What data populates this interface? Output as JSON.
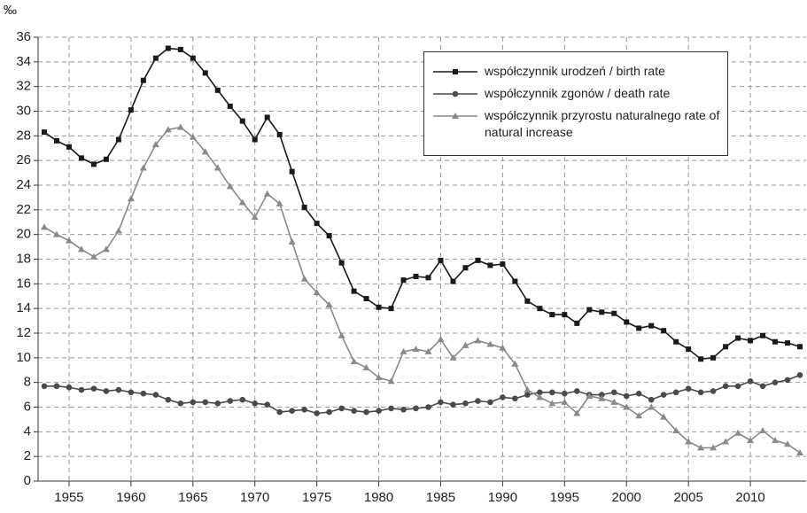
{
  "chart_data": {
    "type": "line",
    "y_label": "‰",
    "x": [
      1953,
      1954,
      1955,
      1956,
      1957,
      1958,
      1959,
      1960,
      1961,
      1962,
      1963,
      1964,
      1965,
      1966,
      1967,
      1968,
      1969,
      1970,
      1971,
      1972,
      1973,
      1974,
      1975,
      1976,
      1977,
      1978,
      1979,
      1980,
      1981,
      1982,
      1983,
      1984,
      1985,
      1986,
      1987,
      1988,
      1989,
      1990,
      1991,
      1992,
      1993,
      1994,
      1995,
      1996,
      1997,
      1998,
      1999,
      2000,
      2001,
      2002,
      2003,
      2004,
      2005,
      2006,
      2007,
      2008,
      2009,
      2010,
      2011,
      2012,
      2013,
      2014
    ],
    "series": [
      {
        "name": "współczynnik urodzeń / birth rate",
        "color": "#1a1a1a",
        "marker": "square",
        "values": [
          28.3,
          27.6,
          27.1,
          26.2,
          25.7,
          26.1,
          27.7,
          30.1,
          32.5,
          34.3,
          35.1,
          35.0,
          34.3,
          33.1,
          31.7,
          30.4,
          29.2,
          27.7,
          29.5,
          28.1,
          25.1,
          22.2,
          20.9,
          19.9,
          17.7,
          15.4,
          14.8,
          14.1,
          14.0,
          16.3,
          16.6,
          16.5,
          17.9,
          16.2,
          17.3,
          17.9,
          17.5,
          17.6,
          16.2,
          14.6,
          14.0,
          13.5,
          13.5,
          12.8,
          13.9,
          13.7,
          13.6,
          12.9,
          12.4,
          12.6,
          12.2,
          11.3,
          10.7,
          9.9,
          10.0,
          10.9,
          11.6,
          11.4,
          11.8,
          11.3,
          11.2,
          10.9
        ]
      },
      {
        "name": "współczynnik zgonów / death rate",
        "color": "#4a4a4a",
        "marker": "circle",
        "values": [
          7.7,
          7.7,
          7.6,
          7.4,
          7.5,
          7.3,
          7.4,
          7.2,
          7.1,
          7.0,
          6.6,
          6.3,
          6.4,
          6.4,
          6.3,
          6.5,
          6.6,
          6.3,
          6.2,
          5.6,
          5.7,
          5.8,
          5.5,
          5.6,
          5.9,
          5.7,
          5.6,
          5.7,
          5.9,
          5.8,
          5.9,
          6.0,
          6.4,
          6.2,
          6.3,
          6.5,
          6.4,
          6.8,
          6.7,
          7.0,
          7.2,
          7.2,
          7.1,
          7.3,
          7.0,
          7.0,
          7.2,
          6.9,
          7.1,
          6.6,
          7.0,
          7.2,
          7.5,
          7.2,
          7.3,
          7.7,
          7.7,
          8.1,
          7.7,
          8.0,
          8.2,
          8.6
        ]
      },
      {
        "name": "współczynnik przyrostu naturalnego rate of natural increase",
        "color": "#8a8a8a",
        "marker": "triangle",
        "values": [
          20.6,
          20.0,
          19.5,
          18.8,
          18.2,
          18.8,
          20.3,
          22.9,
          25.4,
          27.3,
          28.5,
          28.7,
          27.9,
          26.7,
          25.4,
          23.9,
          22.6,
          21.4,
          23.3,
          22.5,
          19.4,
          16.4,
          15.3,
          14.3,
          11.8,
          9.7,
          9.2,
          8.4,
          8.1,
          10.5,
          10.7,
          10.5,
          11.5,
          10.0,
          11.0,
          11.4,
          11.1,
          10.8,
          9.5,
          7.4,
          6.8,
          6.3,
          6.4,
          5.5,
          6.9,
          6.7,
          6.4,
          6.0,
          5.3,
          6.0,
          5.2,
          4.1,
          3.2,
          2.7,
          2.7,
          3.2,
          3.9,
          3.3,
          4.1,
          3.3,
          3.0,
          2.3
        ]
      }
    ],
    "xlim": [
      1952.5,
      2014.5
    ],
    "xticks": [
      1955,
      1960,
      1965,
      1970,
      1975,
      1980,
      1985,
      1990,
      1995,
      2000,
      2005,
      2010
    ],
    "ylim": [
      0,
      36
    ],
    "yticks": [
      0,
      2,
      4,
      6,
      8,
      10,
      12,
      14,
      16,
      18,
      20,
      22,
      24,
      26,
      28,
      30,
      32,
      34,
      36
    ],
    "grid": true,
    "legend": "top-right"
  }
}
